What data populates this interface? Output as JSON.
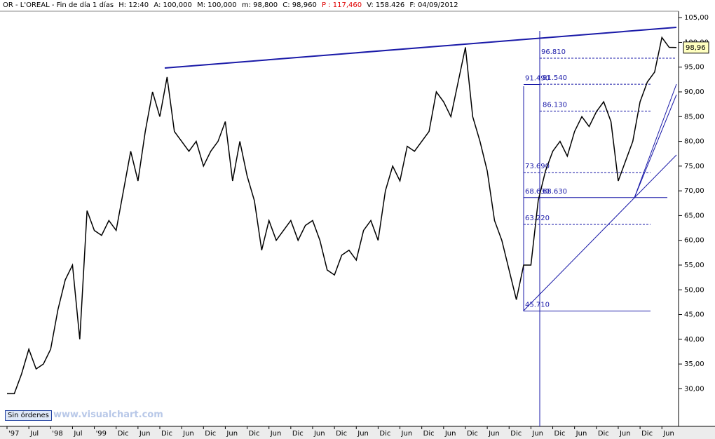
{
  "header": {
    "items": [
      "OR - L'OREAL - Fin de día 1 días",
      "H: 12:40",
      "A: 100,000",
      "M: 100,000",
      "m: 98,800",
      "C: 98,960",
      "P : 117,460",
      "V: 158.426",
      "F: 04/09/2012"
    ]
  },
  "button": "Sin órdenes",
  "watermark": "www.visualchart.com",
  "chart_data": {
    "type": "line",
    "color": "#000000",
    "categories": [
      "'97",
      null,
      null,
      "Jul",
      null,
      null,
      "'98",
      null,
      null,
      "Jul",
      null,
      null,
      "'99",
      null,
      null,
      "Dic",
      null,
      null,
      "Jun",
      null,
      null,
      "Dic",
      null,
      null,
      "Jun",
      null,
      null,
      "Dic",
      null,
      null,
      "Jun",
      null,
      null,
      "Dic",
      null,
      null,
      "Jun",
      null,
      null,
      "Dic",
      null,
      null,
      "Jun",
      null,
      null,
      "Dic",
      null,
      null,
      "Jun",
      null,
      null,
      "Dic",
      null,
      null,
      "Jun",
      null,
      null,
      "Dic",
      null,
      null,
      "Jun",
      null,
      null,
      "Dic",
      null,
      null,
      "Jun",
      null,
      null,
      "Dic",
      null,
      null,
      "Jun",
      null,
      null,
      "Dic",
      null,
      null,
      "Jun",
      null,
      null,
      "Dic",
      null,
      null,
      "Jun",
      null,
      null,
      "Dic",
      null,
      null,
      "Jun",
      null,
      null
    ],
    "values": [
      29,
      29,
      33,
      38,
      34,
      35,
      38,
      46,
      52,
      55,
      40,
      66,
      62,
      61,
      64,
      62,
      70,
      78,
      72,
      82,
      90,
      85,
      93,
      82,
      80,
      78,
      80,
      75,
      78,
      80,
      84,
      72,
      80,
      73,
      68,
      58,
      64,
      60,
      62,
      64,
      60,
      63,
      64,
      60,
      54,
      53,
      57,
      58,
      56,
      62,
      64,
      60,
      70,
      75,
      72,
      79,
      78,
      80,
      82,
      90,
      88,
      85,
      92,
      99,
      85,
      80,
      74,
      64,
      60,
      54,
      48,
      55,
      55,
      68,
      74,
      78,
      80,
      77,
      82,
      85,
      83,
      86,
      88,
      84,
      72,
      76,
      80,
      88,
      92,
      94,
      101,
      99,
      98.96
    ],
    "ylim": [
      22.4,
      106.3
    ],
    "yticks": [
      {
        "value": 30,
        "label": "30,00"
      },
      {
        "value": 35,
        "label": "35,00"
      },
      {
        "value": 40,
        "label": "40,00"
      },
      {
        "value": 45,
        "label": "45,00"
      },
      {
        "value": 50,
        "label": "50,00"
      },
      {
        "value": 55,
        "label": "55,00"
      },
      {
        "value": 60,
        "label": "60,00"
      },
      {
        "value": 65,
        "label": "65,00"
      },
      {
        "value": 70,
        "label": "70,00"
      },
      {
        "value": 75,
        "label": "75,00"
      },
      {
        "value": 80,
        "label": "80,00"
      },
      {
        "value": 85,
        "label": "85,00"
      },
      {
        "value": 90,
        "label": "90,00"
      },
      {
        "value": 95,
        "label": "95,00"
      },
      {
        "value": 100,
        "label": "100,00"
      },
      {
        "value": 105,
        "label": "105,00"
      }
    ],
    "last_price": {
      "value": 98.96,
      "label": "98,96"
    },
    "fib_levels": [
      {
        "value": 96.81,
        "label": "96.810"
      },
      {
        "value": 91.49,
        "label": "91.490"
      },
      {
        "value": 91.54,
        "label": "91.540"
      },
      {
        "value": 86.13,
        "label": "86.130"
      },
      {
        "value": 73.69,
        "label": "73.690"
      },
      {
        "value": 68.63,
        "label": "68.630"
      },
      {
        "value": 68.63,
        "label": "68.630"
      },
      {
        "value": 63.22,
        "label": "63.220"
      },
      {
        "value": 45.71,
        "label": "45.710"
      }
    ],
    "fib_color": "#1a1aa8"
  }
}
